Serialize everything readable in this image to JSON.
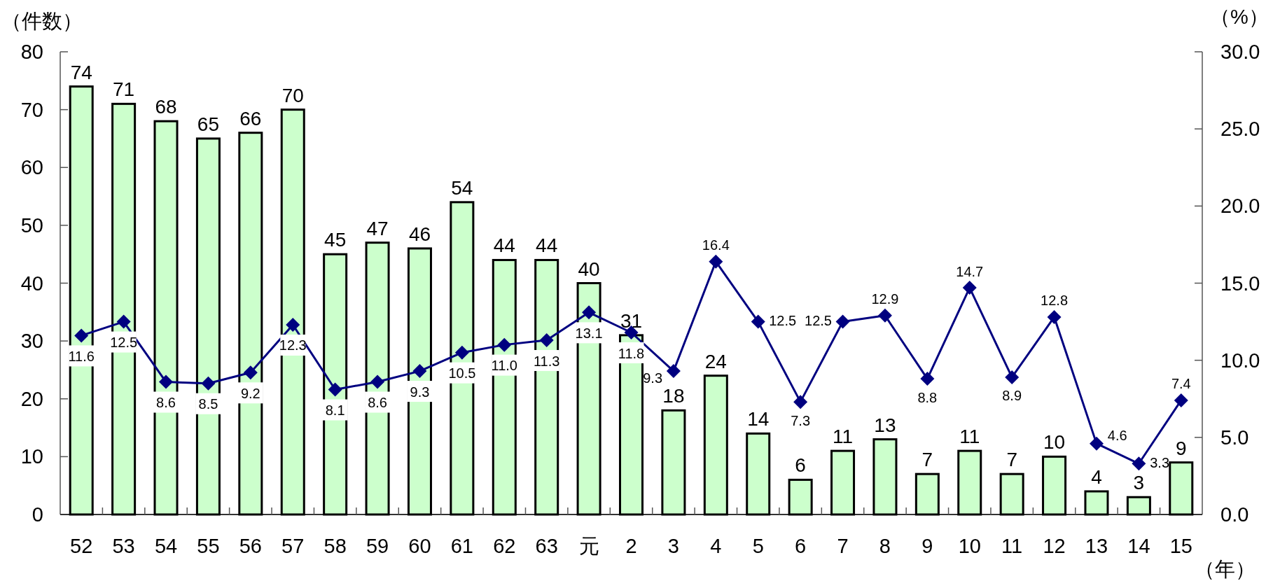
{
  "chart_data": {
    "type": "bar",
    "ylabel": "（件数）",
    "y2label": "（%）",
    "xlabel": "（年）",
    "categories": [
      "52",
      "53",
      "54",
      "55",
      "56",
      "57",
      "58",
      "59",
      "60",
      "61",
      "62",
      "63",
      "元",
      "2",
      "3",
      "4",
      "5",
      "6",
      "7",
      "8",
      "9",
      "10",
      "11",
      "12",
      "13",
      "14",
      "15"
    ],
    "series": [
      {
        "color": "#ccffcc",
        "values": [
          74,
          71,
          68,
          65,
          66,
          70,
          45,
          47,
          46,
          54,
          44,
          44,
          40,
          31,
          18,
          24,
          14,
          6,
          11,
          13,
          7,
          11,
          7,
          10,
          4,
          3,
          9
        ],
        "value_labels": [
          "74",
          "71",
          "68",
          "65",
          "66",
          "70",
          "45",
          "47",
          "46",
          "54",
          "44",
          "44",
          "40",
          "31",
          "18",
          "24",
          "14",
          "6",
          "11",
          "13",
          "7",
          "11",
          "7",
          "10",
          "4",
          "3",
          "9"
        ]
      },
      {
        "type": "line",
        "axis": "y2",
        "color": "#000080",
        "marker": "diamond",
        "values": [
          11.6,
          12.5,
          8.6,
          8.5,
          9.2,
          12.3,
          8.1,
          8.6,
          9.3,
          10.5,
          11.0,
          11.3,
          13.1,
          11.8,
          9.3,
          16.4,
          12.5,
          7.3,
          12.5,
          12.9,
          8.8,
          14.7,
          8.9,
          12.8,
          4.6,
          3.3,
          7.4
        ],
        "value_labels": [
          "11.6",
          "12.5",
          "8.6",
          "8.5",
          "9.2",
          "12.3",
          "8.1",
          "8.6",
          "9.3",
          "10.5",
          "11.0",
          "11.3",
          "13.1",
          "11.8",
          "9.3",
          "16.4",
          "12.5",
          "7.3",
          "12.5",
          "12.9",
          "8.8",
          "14.7",
          "8.9",
          "12.8",
          "4.6",
          "3.3",
          "7.4"
        ]
      }
    ],
    "ylim": [
      0,
      80
    ],
    "yticks": [
      0,
      10,
      20,
      30,
      40,
      50,
      60,
      70,
      80
    ],
    "y2lim": [
      0,
      30
    ],
    "y2ticks": [
      {
        "value": 0,
        "label": "0.0"
      },
      {
        "value": 5,
        "label": "5.0"
      },
      {
        "value": 10,
        "label": "10.0"
      },
      {
        "value": 15,
        "label": "15.0"
      },
      {
        "value": 20,
        "label": "20.0"
      },
      {
        "value": 25,
        "label": "25.0"
      },
      {
        "value": 30,
        "label": "30.0"
      }
    ],
    "grid": false
  }
}
